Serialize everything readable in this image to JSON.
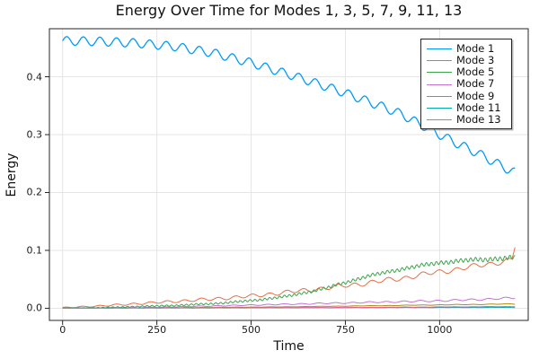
{
  "chart_data": {
    "type": "line",
    "title": "Energy Over Time for Modes 1, 3, 5, 7, 9, 11, 13",
    "xlabel": "Time",
    "ylabel": "Energy",
    "xlim": [
      -35,
      1235
    ],
    "ylim": [
      -0.021,
      0.483
    ],
    "x_range_of_data": [
      0,
      1200
    ],
    "xticks": [
      0,
      250,
      500,
      750,
      1000
    ],
    "xtick_labels": [
      "0",
      "250",
      "500",
      "750",
      "1000"
    ],
    "yticks": [
      0.0,
      0.1,
      0.2,
      0.3,
      0.4
    ],
    "ytick_labels": [
      "0.0",
      "0.1",
      "0.2",
      "0.3",
      "0.4"
    ],
    "grid": true,
    "legend_position": "top-right",
    "frame_color": "#262626",
    "grid_color": "#e5e5e5",
    "series": [
      {
        "name": "Mode 1",
        "color": "#009AFA",
        "stroke_width": 1.3,
        "trend_x": [
          0,
          100,
          200,
          300,
          400,
          500,
          600,
          700,
          800,
          900,
          1000,
          1100,
          1200
        ],
        "trend_y": [
          0.462,
          0.461,
          0.458,
          0.452,
          0.441,
          0.424,
          0.404,
          0.383,
          0.36,
          0.335,
          0.3,
          0.268,
          0.234
        ],
        "osc": {
          "period": 44,
          "amp0": 0.0075,
          "amp1": 0.0075,
          "phase": 0,
          "noise": 0.0005
        }
      },
      {
        "name": "Mode 3",
        "color": "#E36F47",
        "stroke_width": 1.0,
        "trend_x": [
          0,
          100,
          200,
          300,
          400,
          500,
          600,
          700,
          800,
          900,
          1000,
          1100,
          1150,
          1185,
          1192,
          1200
        ],
        "trend_y": [
          0.001,
          0.004,
          0.008,
          0.012,
          0.016,
          0.021,
          0.028,
          0.035,
          0.043,
          0.052,
          0.063,
          0.073,
          0.079,
          0.083,
          0.085,
          0.107
        ],
        "osc": {
          "period": 45,
          "amp0": 0.0008,
          "amp1": 0.0045,
          "phase": 0.5,
          "noise": 0.003
        }
      },
      {
        "name": "Mode 5",
        "color": "#3DA44E",
        "stroke_width": 1.0,
        "trend_x": [
          0,
          100,
          200,
          300,
          400,
          500,
          600,
          700,
          800,
          900,
          1000,
          1100,
          1200
        ],
        "trend_y": [
          0.0,
          0.001,
          0.003,
          0.005,
          0.008,
          0.013,
          0.021,
          0.035,
          0.054,
          0.068,
          0.079,
          0.084,
          0.087
        ],
        "osc": {
          "period": 13,
          "amp0": 0.0004,
          "amp1": 0.0038,
          "phase": 0,
          "noise": 0.0015
        }
      },
      {
        "name": "Mode 7",
        "color": "#C371D2",
        "stroke_width": 1.0,
        "trend_x": [
          0,
          200,
          400,
          600,
          800,
          1000,
          1100,
          1200
        ],
        "trend_y": [
          0.0,
          0.001,
          0.004,
          0.007,
          0.01,
          0.013,
          0.015,
          0.018
        ],
        "osc": {
          "period": 45,
          "amp0": 0.0002,
          "amp1": 0.0013,
          "phase": 1.0,
          "noise": 0.0006
        }
      },
      {
        "name": "Mode 9",
        "color": "#AC8E18",
        "stroke_width": 1.0,
        "trend_x": [
          0,
          300,
          600,
          900,
          1200
        ],
        "trend_y": [
          0.0,
          0.001,
          0.0025,
          0.005,
          0.0075
        ],
        "osc": {
          "period": 45,
          "amp0": 0.0001,
          "amp1": 0.0004,
          "phase": 0,
          "noise": 0.0003
        }
      },
      {
        "name": "Mode 11",
        "color": "#00AAAE",
        "stroke_width": 1.0,
        "trend_x": [
          0,
          600,
          1200
        ],
        "trend_y": [
          0.0005,
          0.001,
          0.0015
        ],
        "osc": {
          "period": 45,
          "amp0": 5e-05,
          "amp1": 0.0002,
          "phase": 0,
          "noise": 0.0002
        }
      },
      {
        "name": "Mode 13",
        "color": "#ED5E93",
        "stroke_width": 1.0,
        "trend_x": [
          0,
          400,
          800,
          1200
        ],
        "trend_y": [
          0.0,
          0.0005,
          0.0015,
          0.003
        ],
        "osc": {
          "period": 45,
          "amp0": 0.0001,
          "amp1": 0.0003,
          "phase": 0.7,
          "noise": 0.0003
        }
      }
    ]
  }
}
